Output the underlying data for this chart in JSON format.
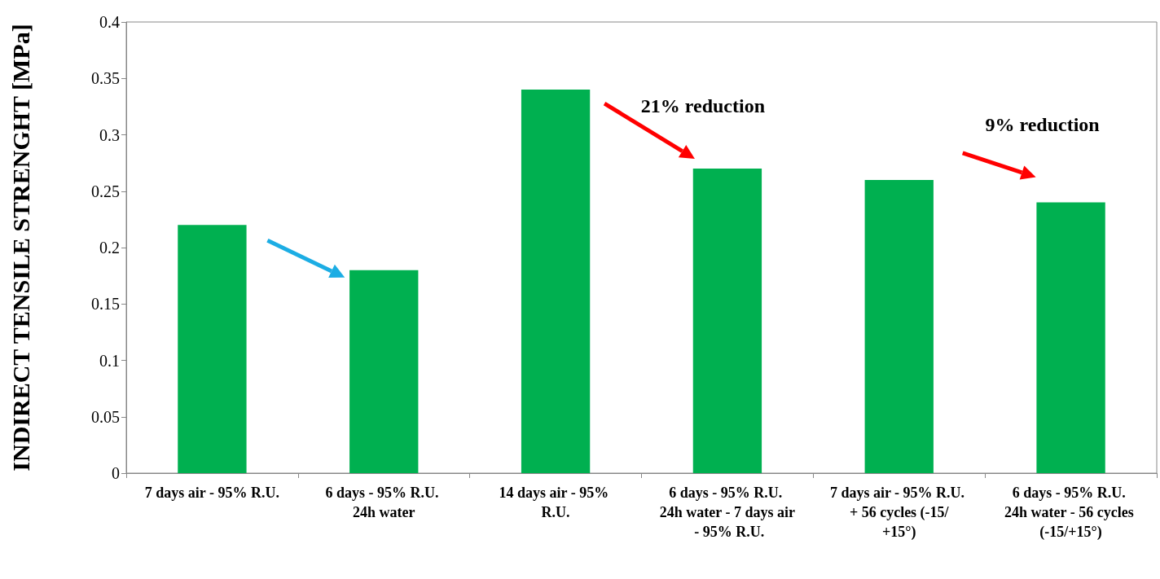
{
  "chart_data": {
    "type": "bar",
    "ylabel": "INDIRECT TENSILE STRENGHT [MPa]",
    "categories": [
      "7 days air - 95% R.U.",
      "6 days - 95% R.U. 24h water",
      "14 days air - 95% R.U.",
      "6 days - 95% R.U. 24h water - 7 days air - 95% R.U.",
      "7 days air - 95% R.U. + 56 cycles (-15/+15°)",
      "6 days - 95% R.U. 24h water - 56 cycles (-15/+15°)"
    ],
    "values": [
      0.22,
      0.18,
      0.34,
      0.27,
      0.26,
      0.24
    ],
    "color": "#00b050",
    "ylim": [
      0,
      0.4
    ],
    "yticks": [
      0,
      0.05,
      0.1,
      0.15,
      0.2,
      0.25,
      0.3,
      0.35,
      0.4
    ],
    "grid": false,
    "annotations": [
      "21% reduction",
      "9% reduction"
    ]
  }
}
